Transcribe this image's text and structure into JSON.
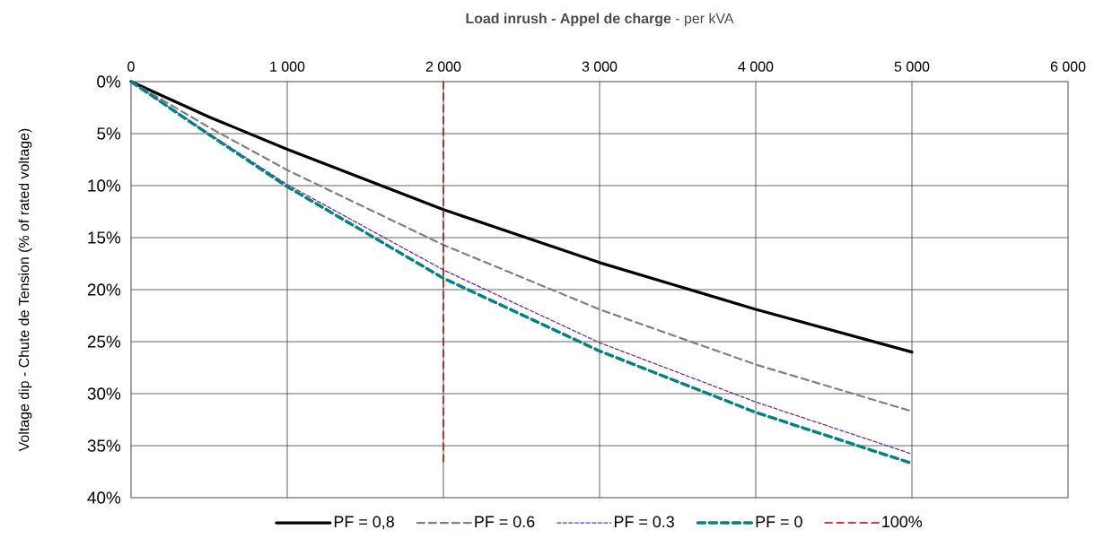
{
  "chart_data": {
    "type": "line",
    "title": "**Load inrush - Appel de charge**  - per kVA",
    "ylabel": "Voltage dip - Chute de Tension  (% of rated voltage)",
    "x": [
      0,
      500,
      1000,
      2000,
      3000,
      4000,
      5000
    ],
    "series": [
      {
        "name": "PF = 0,8",
        "color": "#000000",
        "line_style": "solid",
        "values": [
          0,
          3.4,
          6.5,
          12.3,
          17.4,
          21.9,
          26.0
        ]
      },
      {
        "name": "PF = 0.6",
        "color": "#808080",
        "line_style": "dashed",
        "values": [
          0,
          4.4,
          8.5,
          15.7,
          21.9,
          27.2,
          31.7
        ]
      },
      {
        "name": "PF = 0.3",
        "color": "#7030a0",
        "line_style": "dotted",
        "values": [
          0,
          5.0,
          9.9,
          18.1,
          25.1,
          30.8,
          35.8
        ]
      },
      {
        "name": "PF = 0",
        "color": "#008080",
        "line_style": "dashed",
        "values": [
          0,
          5.1,
          10.1,
          18.9,
          25.9,
          31.8,
          36.7
        ]
      },
      {
        "name": "100%",
        "color": "#c00000",
        "line_style": "dashed",
        "x": [
          2000,
          2000
        ],
        "values": [
          0,
          36.8
        ]
      }
    ],
    "xlim": [
      0,
      6000
    ],
    "xticks": [
      0,
      {
        "value": 1000,
        "label": "1 000"
      },
      {
        "value": 2000,
        "label": "2 000"
      },
      {
        "value": 3000,
        "label": "3 000"
      },
      {
        "value": 4000,
        "label": "4 000"
      },
      {
        "value": 5000,
        "label": "5 000"
      },
      {
        "value": 6000,
        "label": "6 000"
      }
    ],
    "ylim": [
      40,
      0
    ],
    "yticks": [
      {
        "value": 0,
        "label": "0%"
      },
      {
        "value": 5,
        "label": "5%"
      },
      {
        "value": 10,
        "label": "10%"
      },
      {
        "value": 15,
        "label": "15%"
      },
      {
        "value": 20,
        "label": "20%"
      },
      {
        "value": 25,
        "label": "25%"
      },
      {
        "value": 30,
        "label": "30%"
      },
      {
        "value": 35,
        "label": "35%"
      },
      {
        "value": 40,
        "label": "40%"
      }
    ],
    "grid": true,
    "legend": "bottom",
    "marker": "none"
  }
}
